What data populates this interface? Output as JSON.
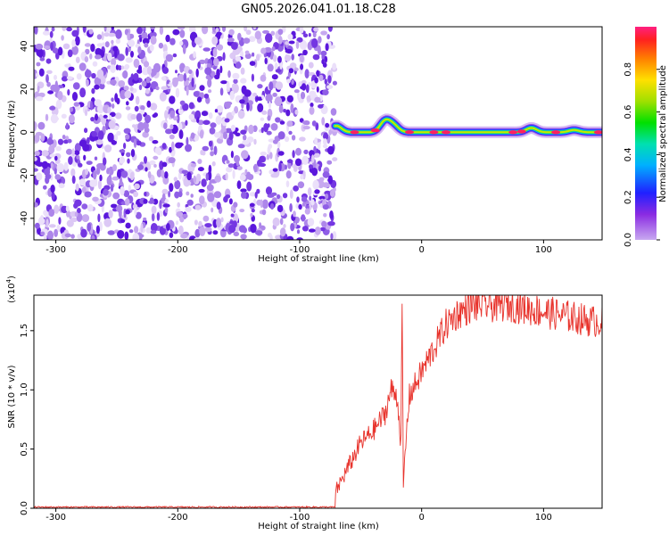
{
  "title": "GN05.2026.041.01.18.C28",
  "chart_data": [
    {
      "type": "heatmap",
      "title": "GN05.2026.041.01.18.C28",
      "xlabel": "Height of straight line (km)",
      "ylabel": "Frequency (Hz)",
      "xlim": [
        -318,
        148
      ],
      "ylim": [
        -50,
        49
      ],
      "xticks": [
        "-300",
        "-200",
        "-100",
        "0",
        "100"
      ],
      "yticks": [
        "-40",
        "-20",
        "0",
        "20",
        "40"
      ],
      "noise_region_x": [
        -318,
        -71
      ],
      "ridge": {
        "x_start": -71,
        "x_end": 148,
        "frequency_hz": 0,
        "bumps": [
          {
            "x": -70,
            "freq": 3
          },
          {
            "x": -30,
            "freq": 5
          },
          {
            "x": -23,
            "freq": 3
          },
          {
            "x": 90,
            "freq": 2
          },
          {
            "x": 125,
            "freq": 1
          }
        ],
        "peaks": [
          -55,
          -38,
          -10,
          10,
          20,
          75,
          82,
          110,
          145
        ]
      },
      "colorbar": {
        "label": "Normalized spectral amplitude",
        "range": [
          0,
          1
        ],
        "ticks": [
          "0.0",
          "0.2",
          "0.4",
          "0.6",
          "0.8"
        ]
      }
    },
    {
      "type": "line",
      "xlabel": "Height of straight line (km)",
      "ylabel": "SNR (10 * v/v)",
      "y_multiplier": "(x10",
      "y_multiplier_exp": "4",
      "xlim": [
        -318,
        148
      ],
      "ylim": [
        0,
        1.8
      ],
      "xticks": [
        "-300",
        "-200",
        "-100",
        "0",
        "100"
      ],
      "yticks": [
        "0.0",
        "0.5",
        "1.0",
        "1.5"
      ],
      "color": "#e8332c",
      "series": [
        {
          "x": [
            -318,
            -71,
            -70,
            -60,
            -50,
            -40,
            -30,
            -25,
            -20,
            -17,
            -16,
            -15,
            -12,
            -10,
            -5,
            0,
            10,
            20,
            30,
            40,
            50,
            60,
            70,
            80,
            90,
            100,
            110,
            120,
            130,
            140,
            148
          ],
          "y": [
            0.01,
            0.01,
            0.15,
            0.35,
            0.55,
            0.65,
            0.8,
            1.0,
            0.95,
            0.55,
            1.7,
            0.2,
            0.7,
            0.95,
            1.05,
            1.15,
            1.35,
            1.55,
            1.65,
            1.7,
            1.72,
            1.71,
            1.72,
            1.7,
            1.68,
            1.66,
            1.64,
            1.62,
            1.6,
            1.58,
            1.58
          ]
        }
      ]
    }
  ]
}
